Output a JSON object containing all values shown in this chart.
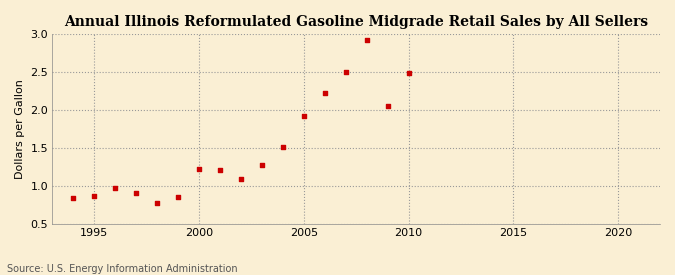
{
  "title": "Annual Illinois Reformulated Gasoline Midgrade Retail Sales by All Sellers",
  "ylabel": "Dollars per Gallon",
  "source": "Source: U.S. Energy Information Administration",
  "background_color": "#faefd4",
  "marker_color": "#cc0000",
  "xlim": [
    1993,
    2022
  ],
  "ylim": [
    0.5,
    3.0
  ],
  "xticks": [
    1995,
    2000,
    2005,
    2010,
    2015,
    2020
  ],
  "yticks": [
    0.5,
    1.0,
    1.5,
    2.0,
    2.5,
    3.0
  ],
  "years": [
    1994,
    1995,
    1996,
    1997,
    1998,
    1999,
    2000,
    2001,
    2002,
    2003,
    2004,
    2005,
    2006,
    2007,
    2008,
    2009,
    2010
  ],
  "values": [
    0.84,
    0.87,
    0.97,
    0.91,
    0.77,
    0.85,
    1.22,
    1.21,
    1.09,
    1.27,
    1.52,
    1.92,
    2.22,
    2.5,
    2.93,
    2.05,
    2.49
  ]
}
